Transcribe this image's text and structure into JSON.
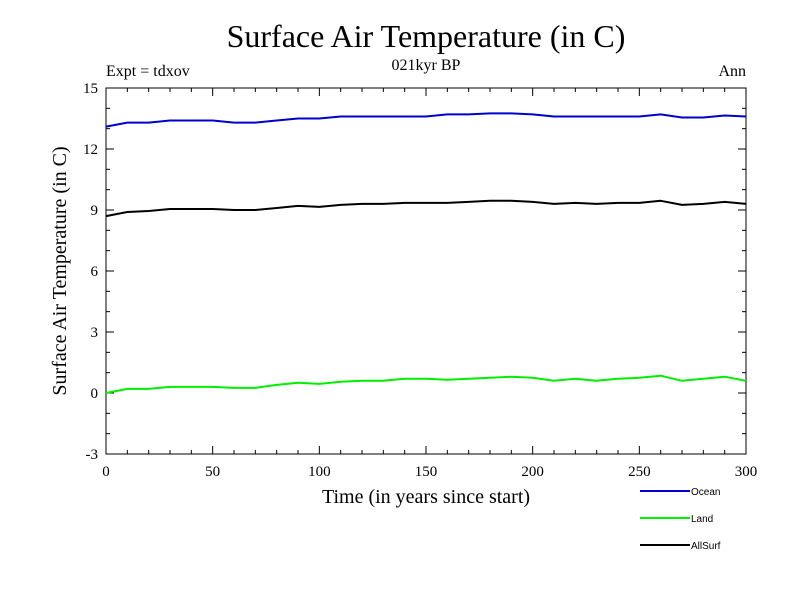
{
  "chart_data": {
    "type": "line",
    "title": "Surface Air Temperature (in C)",
    "subtitle": "021kyr BP",
    "left_annotation": "Expt = tdxov",
    "right_annotation": "Ann",
    "xlabel": "Time (in years since start)",
    "ylabel": "Surface Air Temperature (in C)",
    "xlim": [
      0,
      300
    ],
    "ylim": [
      -3,
      15
    ],
    "x_ticks": [
      0,
      50,
      100,
      150,
      200,
      250,
      300
    ],
    "y_ticks": [
      -3,
      0,
      3,
      6,
      9,
      12,
      15
    ],
    "x_tick_labels": [
      "0",
      "50",
      "100",
      "150",
      "200",
      "250",
      "300"
    ],
    "y_tick_labels": [
      "-3",
      "0",
      "3",
      "6",
      "9",
      "12",
      "15"
    ],
    "series": [
      {
        "name": "Ocean",
        "color": "#0000cc",
        "x": [
          0,
          10,
          20,
          30,
          40,
          50,
          60,
          70,
          80,
          90,
          100,
          110,
          120,
          130,
          140,
          150,
          160,
          170,
          180,
          190,
          200,
          210,
          220,
          230,
          240,
          250,
          260,
          270,
          280,
          290,
          300
        ],
        "values": [
          13.1,
          13.3,
          13.3,
          13.4,
          13.4,
          13.4,
          13.3,
          13.3,
          13.4,
          13.5,
          13.5,
          13.6,
          13.6,
          13.6,
          13.6,
          13.6,
          13.7,
          13.7,
          13.75,
          13.75,
          13.7,
          13.6,
          13.6,
          13.6,
          13.6,
          13.6,
          13.7,
          13.55,
          13.55,
          13.65,
          13.6
        ]
      },
      {
        "name": "Land",
        "color": "#00ee00",
        "x": [
          0,
          10,
          20,
          30,
          40,
          50,
          60,
          70,
          80,
          90,
          100,
          110,
          120,
          130,
          140,
          150,
          160,
          170,
          180,
          190,
          200,
          210,
          220,
          230,
          240,
          250,
          260,
          270,
          280,
          290,
          300
        ],
        "values": [
          0.0,
          0.2,
          0.2,
          0.3,
          0.3,
          0.3,
          0.25,
          0.25,
          0.4,
          0.5,
          0.45,
          0.55,
          0.6,
          0.6,
          0.7,
          0.7,
          0.65,
          0.7,
          0.75,
          0.8,
          0.75,
          0.6,
          0.7,
          0.6,
          0.7,
          0.75,
          0.85,
          0.6,
          0.7,
          0.8,
          0.6
        ]
      },
      {
        "name": "AllSurf",
        "color": "#000000",
        "x": [
          0,
          10,
          20,
          30,
          40,
          50,
          60,
          70,
          80,
          90,
          100,
          110,
          120,
          130,
          140,
          150,
          160,
          170,
          180,
          190,
          200,
          210,
          220,
          230,
          240,
          250,
          260,
          270,
          280,
          290,
          300
        ],
        "values": [
          8.7,
          8.9,
          8.95,
          9.05,
          9.05,
          9.05,
          9.0,
          9.0,
          9.1,
          9.2,
          9.15,
          9.25,
          9.3,
          9.3,
          9.35,
          9.35,
          9.35,
          9.4,
          9.45,
          9.45,
          9.4,
          9.3,
          9.35,
          9.3,
          9.35,
          9.35,
          9.45,
          9.25,
          9.3,
          9.4,
          9.3
        ]
      }
    ],
    "legend_position": "bottom-right"
  }
}
